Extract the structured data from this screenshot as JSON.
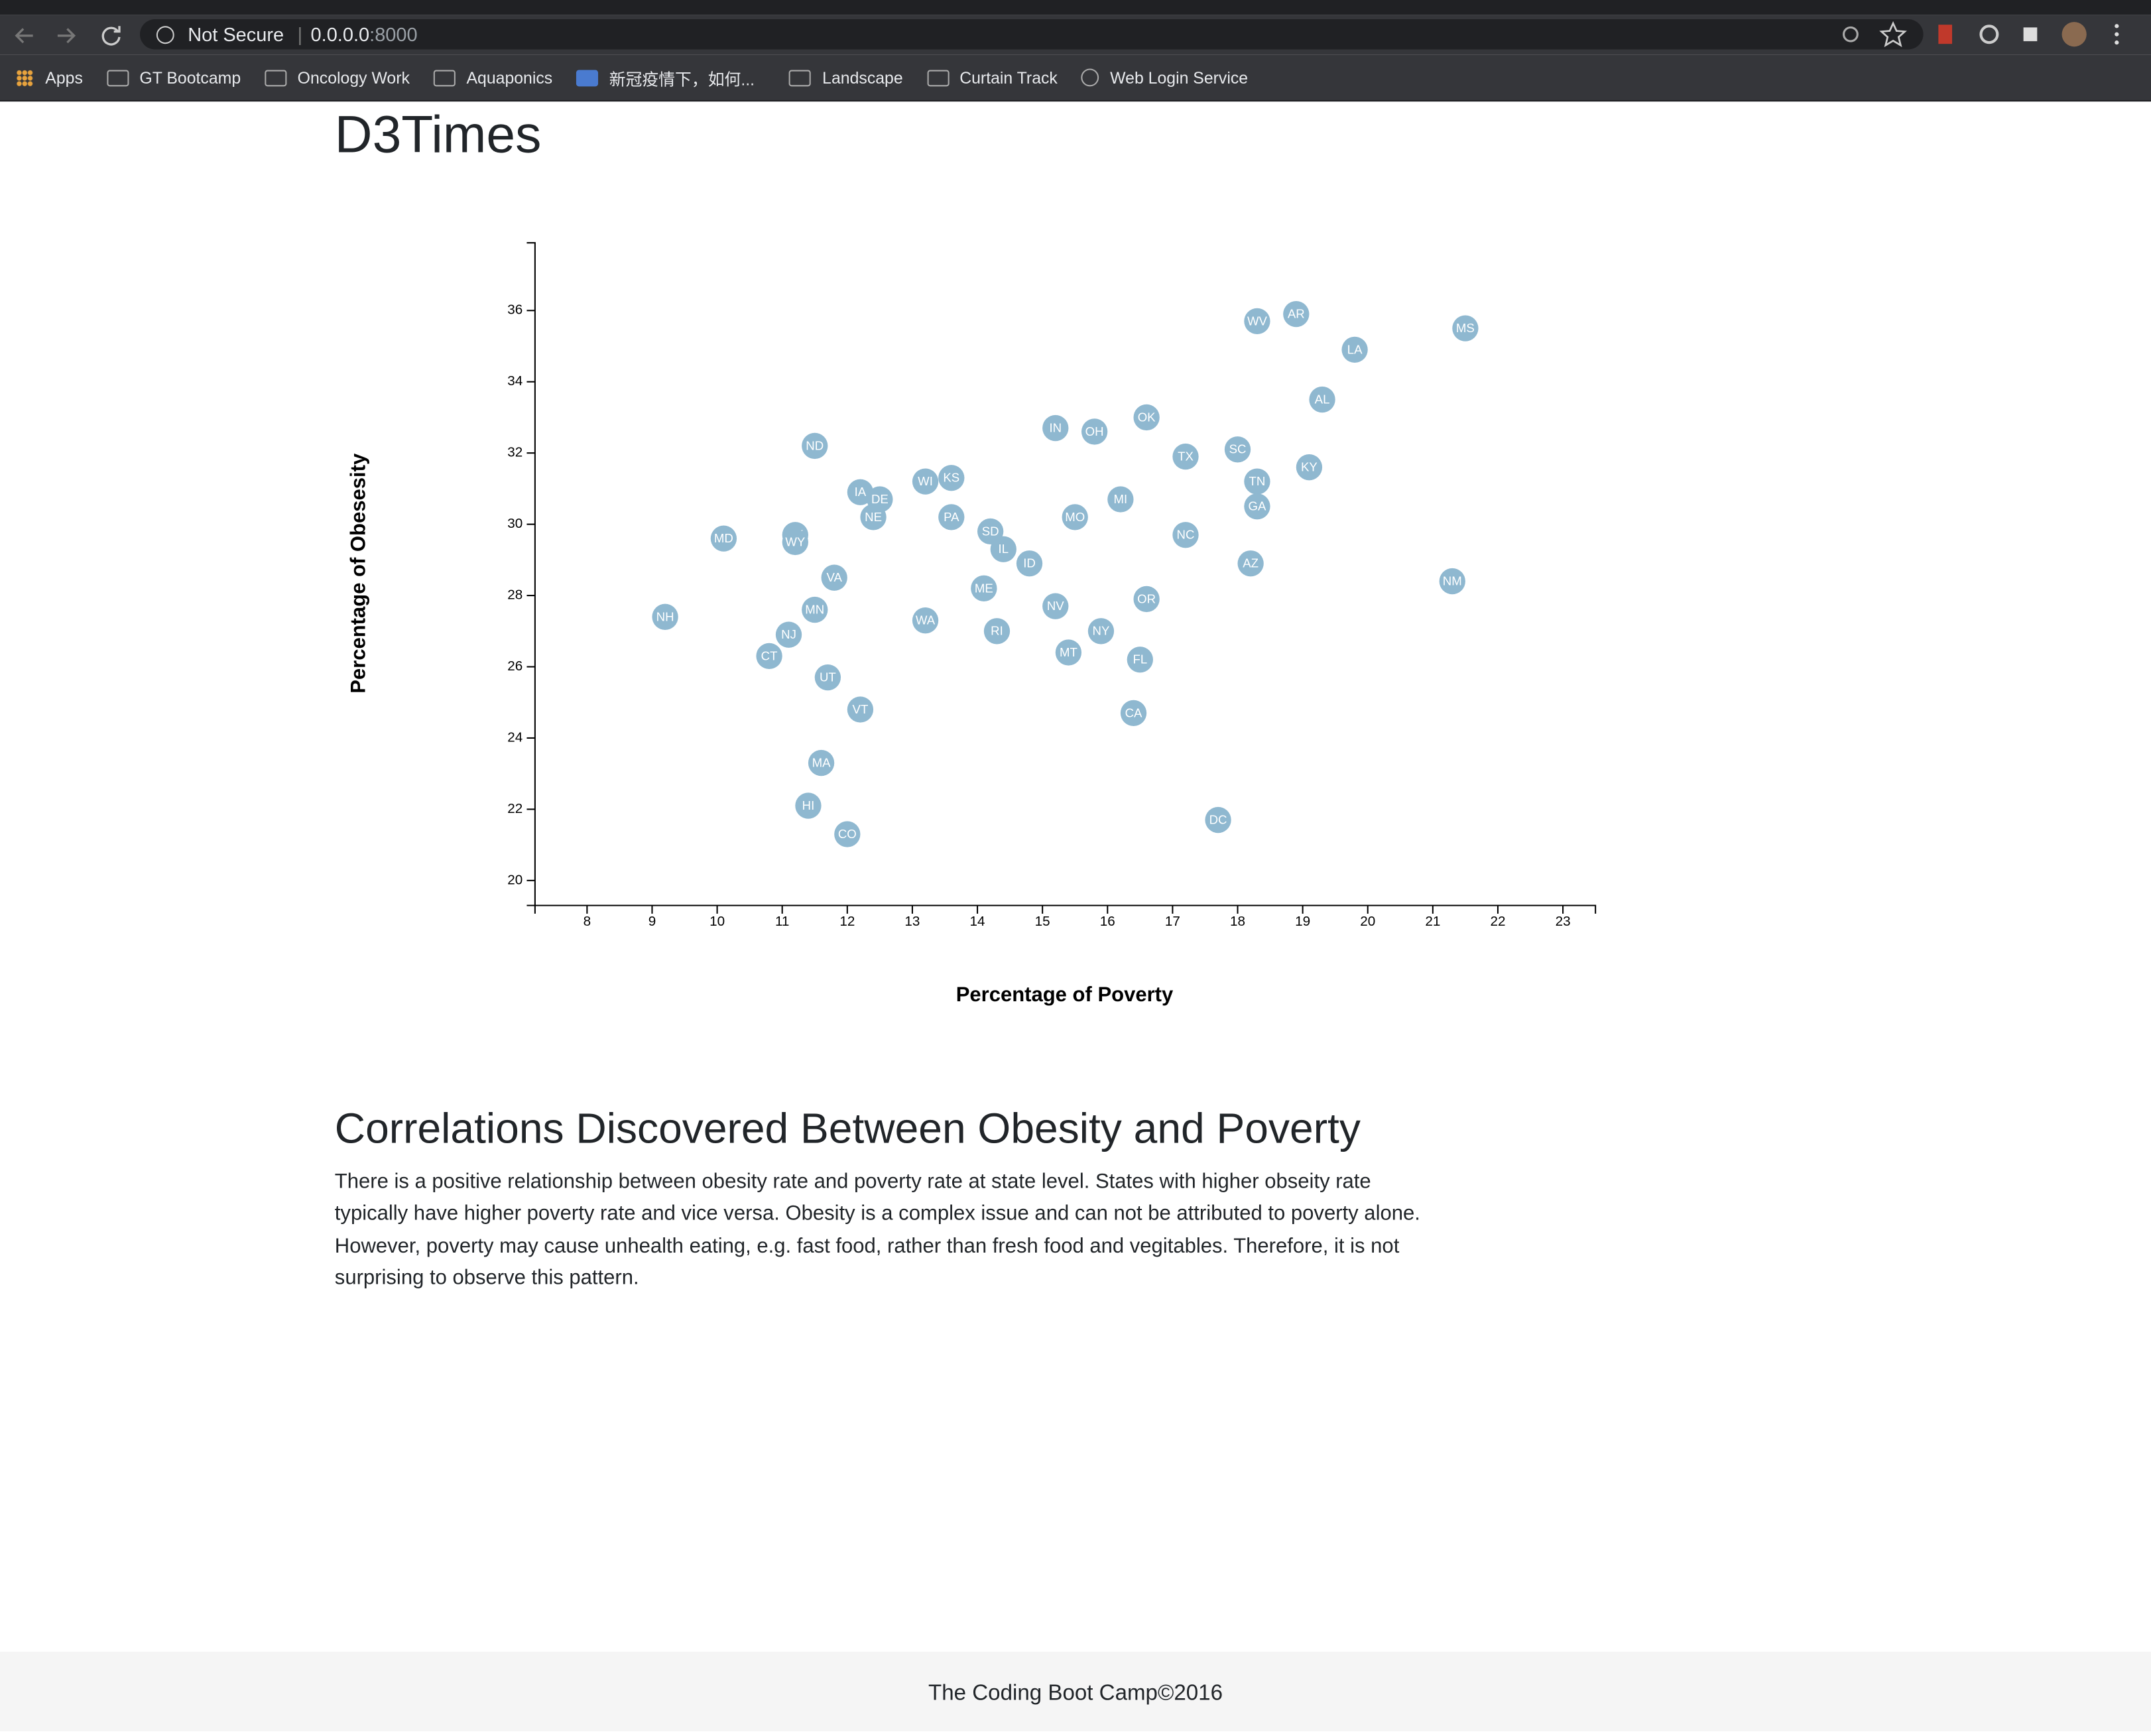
{
  "browser": {
    "security": "Not Secure",
    "host": "0.0.0.0",
    "port": ":8000",
    "bookmarks": [
      "Apps",
      "GT Bootcamp",
      "Oncology Work",
      "Aquaponics",
      "新冠疫情下，如何...",
      "Landscape",
      "Curtain Track",
      "Web Login Service"
    ]
  },
  "page": {
    "heading": "D3Times",
    "article_title": "Correlations Discovered Between Obesity and Poverty",
    "article_text": "There is a positive relationship between obesity rate and poverty rate at state level. States with higher obseity rate typically have higher poverty rate and vice versa. Obesity is a complex issue and can not be attributed to poverty alone. However, poverty may cause unhealth eating, e.g. fast food, rather than fresh food and vegitables. Therefore, it is not surprising to observe this pattern.",
    "footer": "The Coding Boot Camp©2016"
  },
  "chart_data": {
    "type": "scatter",
    "x_label": "Percentage of Poverty",
    "y_label": "Percentage of Obesesity",
    "color": "#8fb8d0",
    "label_color": "#ffffff",
    "labels": [
      "WV",
      "AR",
      "LA",
      "MS",
      "AL",
      "OK",
      "IN",
      "OH",
      "ND",
      "TX",
      "SC",
      "KY",
      "TN",
      "WI",
      "KS",
      "IA",
      "DE",
      "MI",
      "GA",
      "NE",
      "PA",
      "MO",
      "SD",
      "AK",
      "MD",
      "NC",
      "WY",
      "IL",
      "ID",
      "AZ",
      "VA",
      "NM",
      "ME",
      "OR",
      "NV",
      "MN",
      "NH",
      "WA",
      "RI",
      "NY",
      "NJ",
      "MT",
      "CT",
      "FL",
      "UT",
      "VT",
      "CA",
      "MA",
      "HI",
      "DC",
      "CO"
    ],
    "x": [
      18.3,
      18.9,
      19.8,
      21.5,
      19.3,
      16.6,
      15.2,
      15.8,
      11.5,
      17.2,
      18.0,
      19.1,
      18.3,
      13.2,
      13.6,
      12.2,
      12.5,
      16.2,
      18.3,
      12.4,
      13.6,
      15.5,
      14.2,
      11.2,
      10.1,
      17.2,
      11.2,
      14.4,
      14.8,
      18.2,
      11.8,
      21.3,
      14.1,
      16.6,
      15.2,
      11.5,
      9.2,
      13.2,
      14.3,
      15.9,
      11.1,
      15.4,
      10.8,
      16.5,
      11.7,
      12.2,
      16.4,
      11.6,
      11.4,
      17.7,
      12.0
    ],
    "values": [
      35.7,
      35.9,
      34.9,
      35.5,
      33.5,
      33.0,
      32.7,
      32.6,
      32.2,
      31.9,
      32.1,
      31.6,
      31.2,
      31.2,
      31.3,
      30.9,
      30.7,
      30.7,
      30.5,
      30.2,
      30.2,
      30.2,
      29.8,
      29.7,
      29.6,
      29.7,
      29.5,
      29.3,
      28.9,
      28.9,
      28.5,
      28.4,
      28.2,
      27.9,
      27.7,
      27.6,
      27.4,
      27.3,
      27.0,
      27.0,
      26.9,
      26.4,
      26.3,
      26.2,
      25.7,
      24.8,
      24.7,
      23.3,
      22.1,
      21.7,
      21.3
    ],
    "xlim": [
      7.2,
      23.5
    ],
    "ylim": [
      19.3,
      37.9
    ],
    "xticks": [
      8,
      9,
      10,
      11,
      12,
      13,
      14,
      15,
      16,
      17,
      18,
      19,
      20,
      21,
      22,
      23
    ],
    "yticks": [
      20,
      22,
      24,
      26,
      28,
      30,
      32,
      34,
      36
    ]
  }
}
